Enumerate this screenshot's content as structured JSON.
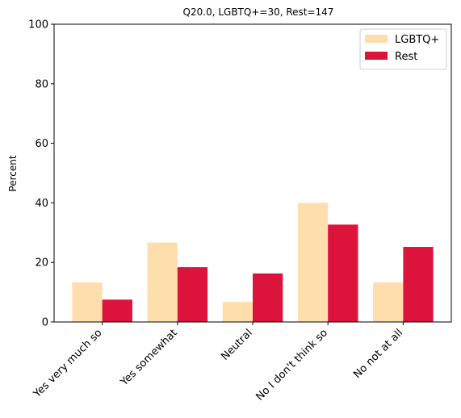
{
  "chart_data": {
    "type": "bar",
    "title": "Q20.0, LGBTQ+=30, Rest=147",
    "xlabel": "",
    "ylabel": "Percent",
    "ylim": [
      0,
      100
    ],
    "yticks": [
      0,
      20,
      40,
      60,
      80,
      100
    ],
    "categories": [
      "Yes very much so",
      "Yes somewhat",
      "Neutral",
      "No I don't think so",
      "No not at all"
    ],
    "series": [
      {
        "name": "LGBTQ+",
        "color": "#FFDEAD",
        "values": [
          13.3,
          26.7,
          6.7,
          40.0,
          13.3
        ]
      },
      {
        "name": "Rest",
        "color": "#DC143C",
        "values": [
          7.5,
          18.4,
          16.3,
          32.7,
          25.2
        ]
      }
    ],
    "legend_position": "top-right",
    "grid": false
  }
}
